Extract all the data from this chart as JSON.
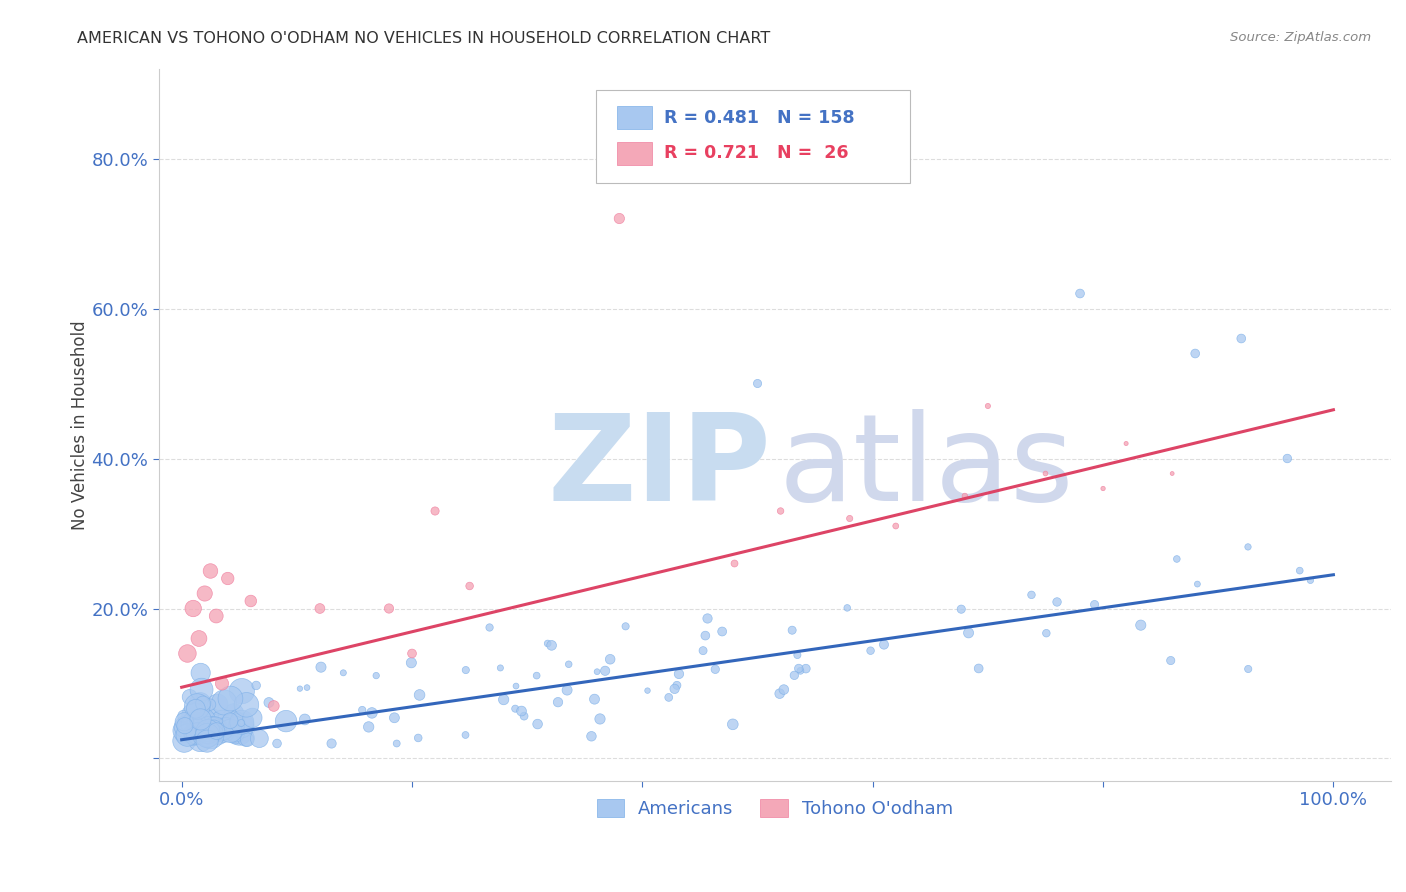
{
  "title": "AMERICAN VS TOHONO O'ODHAM NO VEHICLES IN HOUSEHOLD CORRELATION CHART",
  "source": "Source: ZipAtlas.com",
  "ylabel": "No Vehicles in Household",
  "xlim": [
    -0.02,
    1.05
  ],
  "ylim": [
    -0.03,
    0.92
  ],
  "blue_R": 0.481,
  "blue_N": 158,
  "pink_R": 0.721,
  "pink_N": 26,
  "blue_color": "#A8C8F0",
  "pink_color": "#F4A8B8",
  "blue_edge_color": "#7EB0E8",
  "pink_edge_color": "#F080A0",
  "blue_line_color": "#3366BB",
  "pink_line_color": "#DD4466",
  "watermark_zip_color": "#C8DCF0",
  "watermark_atlas_color": "#D0D8EC",
  "title_color": "#333333",
  "source_color": "#888888",
  "tick_color": "#4472C4",
  "ylabel_color": "#444444",
  "grid_color": "#DDDDDD",
  "legend_label_blue": "Americans",
  "legend_label_pink": "Tohono O'odham",
  "blue_line_y0": 0.025,
  "blue_line_y1": 0.245,
  "pink_line_y0": 0.095,
  "pink_line_y1": 0.465
}
